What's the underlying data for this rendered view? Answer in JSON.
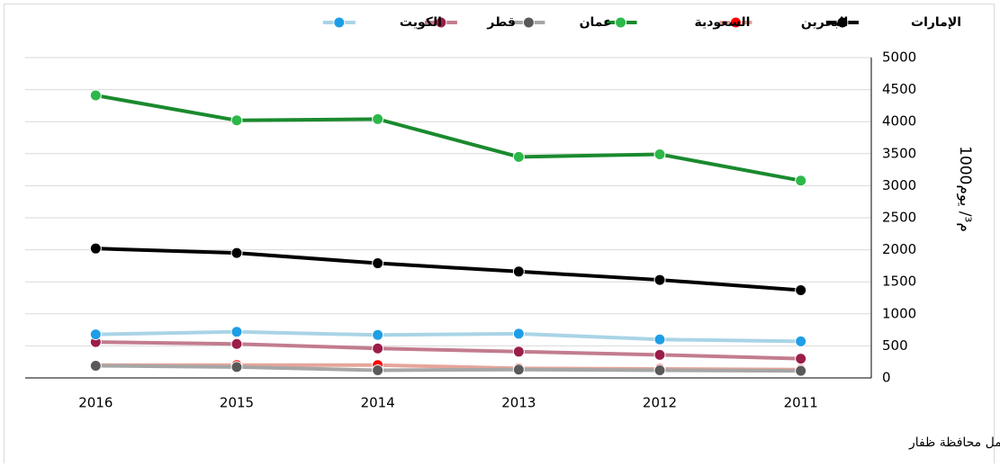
{
  "chart_data": {
    "type": "line",
    "y_label": "1000م³/ يوم",
    "note": "بيانات عمان لا تشمل محافظة ظفار",
    "categories": [
      "2016",
      "2015",
      "2014",
      "2013",
      "2012",
      "2011"
    ],
    "ylim": [
      0,
      5000
    ],
    "yticks": [
      0,
      500,
      1000,
      1500,
      2000,
      2500,
      3000,
      3500,
      4000,
      4500,
      5000
    ],
    "grid": true,
    "series": [
      {
        "name": "الإمارات",
        "color": "#000000",
        "marker_color": "#000000",
        "values": [
          2020,
          1950,
          1790,
          1660,
          1530,
          1370
        ]
      },
      {
        "name": "البحرين",
        "color": "#e6a59a",
        "marker_color": "#ff0000",
        "values": [
          200,
          200,
          200,
          150,
          140,
          130
        ]
      },
      {
        "name": "السعودية",
        "color": "#1a8a2e",
        "marker_color": "#2db84a",
        "values": [
          4410,
          4020,
          4040,
          3450,
          3490,
          3080
        ]
      },
      {
        "name": "عمان",
        "color": "#a6a6a6",
        "marker_color": "#595959",
        "values": [
          190,
          170,
          120,
          130,
          120,
          110
        ]
      },
      {
        "name": "قطر",
        "color": "#c27c8e",
        "marker_color": "#9b1d4a",
        "values": [
          560,
          530,
          460,
          410,
          360,
          300
        ]
      },
      {
        "name": "الكويت",
        "color": "#a9d4e6",
        "marker_color": "#1e9ee6",
        "values": [
          680,
          720,
          670,
          690,
          600,
          570
        ]
      }
    ]
  }
}
